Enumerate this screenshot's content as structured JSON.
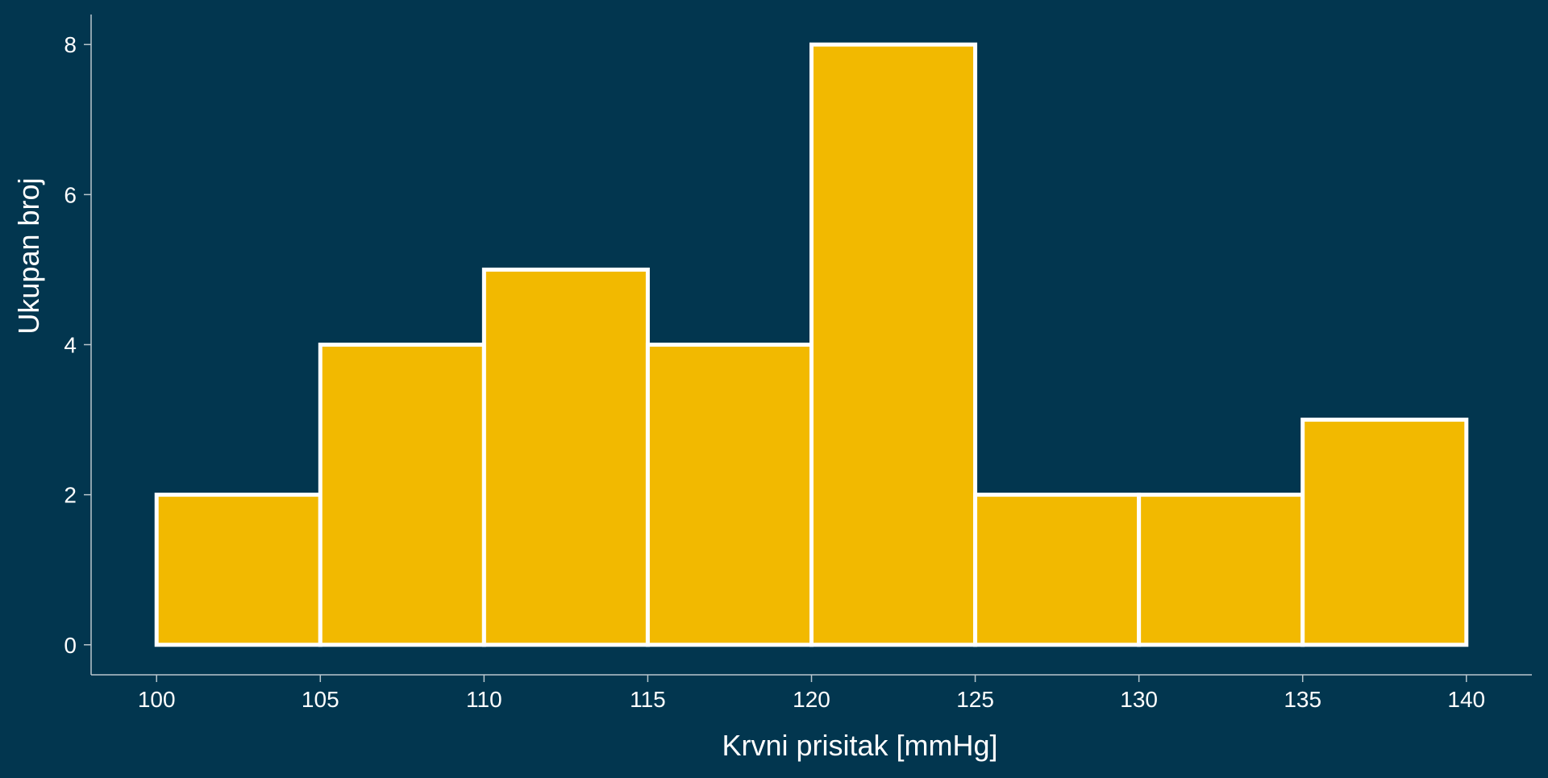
{
  "chart_data": {
    "type": "bar",
    "subtype": "histogram",
    "title": "",
    "xlabel": "Krvni prisitak [mmHg]",
    "ylabel": "Ukupan broj",
    "bin_edges": [
      100,
      105,
      110,
      115,
      120,
      125,
      130,
      135,
      140
    ],
    "values": [
      2,
      4,
      5,
      4,
      8,
      2,
      2,
      3
    ],
    "xlim": [
      98,
      142
    ],
    "ylim": [
      -0.4,
      8.4
    ],
    "x_ticks": [
      100,
      105,
      110,
      115,
      120,
      125,
      130,
      135,
      140
    ],
    "y_ticks": [
      0,
      2,
      4,
      6,
      8
    ],
    "grid": false,
    "colors": {
      "background": "#02364f",
      "bar_fill": "#f2b900",
      "bar_edge": "#ffffff",
      "axis": "#b9c6cd",
      "text": "#ffffff"
    }
  }
}
